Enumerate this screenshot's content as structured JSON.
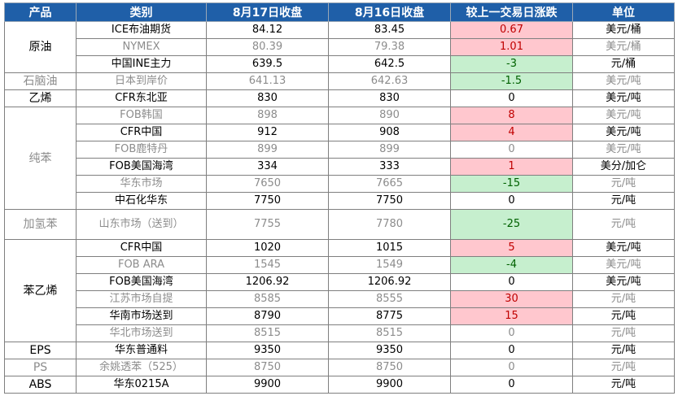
{
  "headers": [
    "产品",
    "类别",
    "8月17日收盘",
    "8月16日收盘",
    "较上一交易日涨跌",
    "单位"
  ],
  "groups": [
    {
      "product": "原油",
      "muted": false,
      "rows": [
        {
          "category": "ICE布油期货",
          "d17": "84.12",
          "d16": "83.45",
          "change": "0.67",
          "unit": "美元/桶",
          "muted": false,
          "dir": "up"
        },
        {
          "category": "NYMEX",
          "d17": "80.39",
          "d16": "79.38",
          "change": "1.01",
          "unit": "美元/桶",
          "muted": true,
          "dir": "up"
        },
        {
          "category": "中国INE主力",
          "d17": "639.5",
          "d16": "642.5",
          "change": "-3",
          "unit": "元/桶",
          "muted": false,
          "dir": "down"
        }
      ]
    },
    {
      "product": "石脑油",
      "muted": true,
      "rows": [
        {
          "category": "日本到岸价",
          "d17": "641.13",
          "d16": "642.63",
          "change": "-1.5",
          "unit": "美元/吨",
          "muted": true,
          "dir": "down"
        }
      ]
    },
    {
      "product": "乙烯",
      "muted": false,
      "rows": [
        {
          "category": "CFR东北亚",
          "d17": "830",
          "d16": "830",
          "change": "0",
          "unit": "美元/吨",
          "muted": false,
          "dir": "zero"
        }
      ]
    },
    {
      "product": "纯苯",
      "muted": true,
      "rows": [
        {
          "category": "FOB韩国",
          "d17": "898",
          "d16": "890",
          "change": "8",
          "unit": "美元/吨",
          "muted": true,
          "dir": "up"
        },
        {
          "category": "CFR中国",
          "d17": "912",
          "d16": "908",
          "change": "4",
          "unit": "美元/吨",
          "muted": false,
          "dir": "up"
        },
        {
          "category": "FOB鹿特丹",
          "d17": "899",
          "d16": "899",
          "change": "0",
          "unit": "美元/吨",
          "muted": true,
          "dir": "zero"
        },
        {
          "category": "FOB美国海湾",
          "d17": "334",
          "d16": "333",
          "change": "1",
          "unit": "美分/加仑",
          "muted": false,
          "dir": "up"
        },
        {
          "category": "华东市场",
          "d17": "7650",
          "d16": "7665",
          "change": "-15",
          "unit": "元/吨",
          "muted": true,
          "dir": "down"
        },
        {
          "category": "中石化华东",
          "d17": "7750",
          "d16": "7750",
          "change": "0",
          "unit": "元/吨",
          "muted": false,
          "dir": "zero"
        }
      ]
    },
    {
      "product": "加氢苯",
      "muted": true,
      "rows": [
        {
          "category": "山东市场（送到）",
          "d17": "7755",
          "d16": "7780",
          "change": "-25",
          "unit": "元/吨",
          "muted": true,
          "dir": "down",
          "tall": true
        }
      ]
    },
    {
      "product": "苯乙烯",
      "muted": false,
      "rows": [
        {
          "category": "CFR中国",
          "d17": "1020",
          "d16": "1015",
          "change": "5",
          "unit": "美元/吨",
          "muted": false,
          "dir": "up"
        },
        {
          "category": "FOB ARA",
          "d17": "1545",
          "d16": "1549",
          "change": "-4",
          "unit": "美元/吨",
          "muted": true,
          "dir": "down"
        },
        {
          "category": "FOB美国海湾",
          "d17": "1206.92",
          "d16": "1206.92",
          "change": "0",
          "unit": "美元/吨",
          "muted": false,
          "dir": "zero"
        },
        {
          "category": "江苏市场自提",
          "d17": "8585",
          "d16": "8555",
          "change": "30",
          "unit": "元/吨",
          "muted": true,
          "dir": "up"
        },
        {
          "category": "华南市场送到",
          "d17": "8790",
          "d16": "8775",
          "change": "15",
          "unit": "元/吨",
          "muted": false,
          "dir": "up"
        },
        {
          "category": "华北市场送到",
          "d17": "8515",
          "d16": "8515",
          "change": "0",
          "unit": "元/吨",
          "muted": true,
          "dir": "zero"
        }
      ]
    },
    {
      "product": "EPS",
      "muted": false,
      "rows": [
        {
          "category": "华东普通料",
          "d17": "9350",
          "d16": "9350",
          "change": "0",
          "unit": "元/吨",
          "muted": false,
          "dir": "zero"
        }
      ]
    },
    {
      "product": "PS",
      "muted": true,
      "rows": [
        {
          "category": "余姚透苯（525）",
          "d17": "8750",
          "d16": "8750",
          "change": "0",
          "unit": "元/吨",
          "muted": true,
          "dir": "zero"
        }
      ]
    },
    {
      "product": "ABS",
      "muted": false,
      "rows": [
        {
          "category": "华东0215A",
          "d17": "9900",
          "d16": "9900",
          "change": "0",
          "unit": "元/吨",
          "muted": false,
          "dir": "zero"
        }
      ]
    }
  ]
}
